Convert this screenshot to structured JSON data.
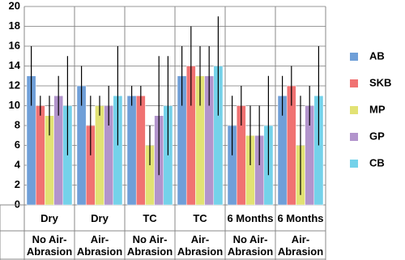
{
  "chart_data": {
    "type": "bar",
    "categories": [
      "Dry",
      "Dry",
      "TC",
      "TC",
      "6 Months",
      "6 Months"
    ],
    "subcategories": [
      "No Air-Abrasion",
      "Air-Abrasion",
      "No Air-Abrasion",
      "Air-Abrasion",
      "No Air-Abrasion",
      "Air-Abrasion"
    ],
    "series": [
      {
        "name": "AB",
        "color": "#6f9fd8",
        "values": [
          13,
          12,
          11,
          13,
          8,
          11
        ],
        "errors": [
          3,
          2,
          1,
          3,
          3,
          2
        ]
      },
      {
        "name": "SKB",
        "color": "#f07272",
        "values": [
          10,
          8,
          11,
          14,
          10,
          12
        ],
        "errors": [
          1,
          3,
          1,
          4,
          2,
          2
        ]
      },
      {
        "name": "MP",
        "color": "#e2e274",
        "values": [
          9,
          10,
          6,
          13,
          7,
          6
        ],
        "errors": [
          2,
          1,
          2,
          3,
          3,
          5
        ]
      },
      {
        "name": "GP",
        "color": "#b294cc",
        "values": [
          11,
          10,
          9,
          13,
          7,
          10
        ],
        "errors": [
          2,
          2,
          6,
          3,
          3,
          2
        ]
      },
      {
        "name": "CB",
        "color": "#74d2ea",
        "values": [
          10,
          11,
          10,
          14,
          8,
          11
        ],
        "errors": [
          5,
          5,
          5,
          5,
          5,
          5
        ]
      }
    ],
    "ylim": [
      0,
      20
    ],
    "yticks": [
      0,
      2,
      4,
      6,
      8,
      10,
      12,
      14,
      16,
      18,
      20
    ],
    "grid": true,
    "legend": "right"
  }
}
